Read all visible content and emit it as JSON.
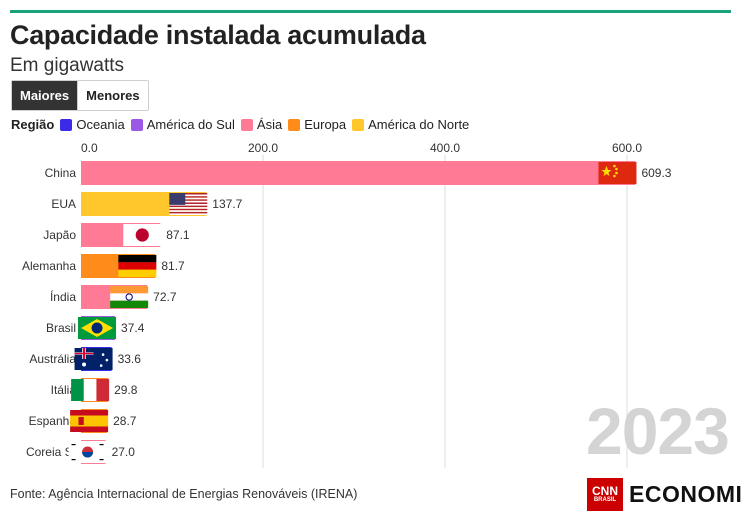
{
  "header": {
    "title": "Capacidade instalada acumulada",
    "subtitle": "Em gigawatts"
  },
  "toggle": {
    "options": [
      "Maiores",
      "Menores"
    ],
    "selected": "Maiores"
  },
  "legend": {
    "title": "Região",
    "items": [
      {
        "label": "Oceania",
        "color": "#3b2be8"
      },
      {
        "label": "América do Sul",
        "color": "#9b59e6"
      },
      {
        "label": "Ásia",
        "color": "#ff7a95"
      },
      {
        "label": "Europa",
        "color": "#ff8c1a"
      },
      {
        "label": "América do Norte",
        "color": "#ffc72c"
      }
    ]
  },
  "chart_data": {
    "type": "bar",
    "orientation": "horizontal",
    "categories": [
      "China",
      "EUA",
      "Japão",
      "Alemanha",
      "Índia",
      "Brasil",
      "Austrália",
      "Itália",
      "Espanha",
      "Coreia S."
    ],
    "values": [
      609.3,
      137.7,
      87.1,
      81.7,
      72.7,
      37.4,
      33.6,
      29.8,
      28.7,
      27.0
    ],
    "value_labels": [
      "609.3",
      "137.7",
      "87.1",
      "81.7",
      "72.7",
      "37.4",
      "33.6",
      "29.8",
      "28.7",
      "27.0"
    ],
    "regions": [
      "Ásia",
      "América do Norte",
      "Ásia",
      "Europa",
      "Ásia",
      "América do Sul",
      "Oceania",
      "Europa",
      "Europa",
      "Ásia"
    ],
    "flags": [
      "china-flag",
      "usa-flag",
      "japan-flag",
      "germany-flag",
      "india-flag",
      "brazil-flag",
      "australia-flag",
      "italy-flag",
      "spain-flag",
      "south-korea-flag"
    ],
    "x_ticks": [
      "0.0",
      "200.0",
      "400.0",
      "600.0"
    ],
    "x_tick_values": [
      0,
      200,
      400,
      600
    ],
    "xlim": [
      0,
      620
    ],
    "grid": true,
    "legend_position": "top-left"
  },
  "year_label": "2023",
  "footer": {
    "source": "Fonte: Agência Internacional de Energias Renováveis (IRENA)",
    "logo_text": "ECONOMIA",
    "logo_box_line1": "CNN",
    "logo_box_line2": "BRASIL"
  }
}
